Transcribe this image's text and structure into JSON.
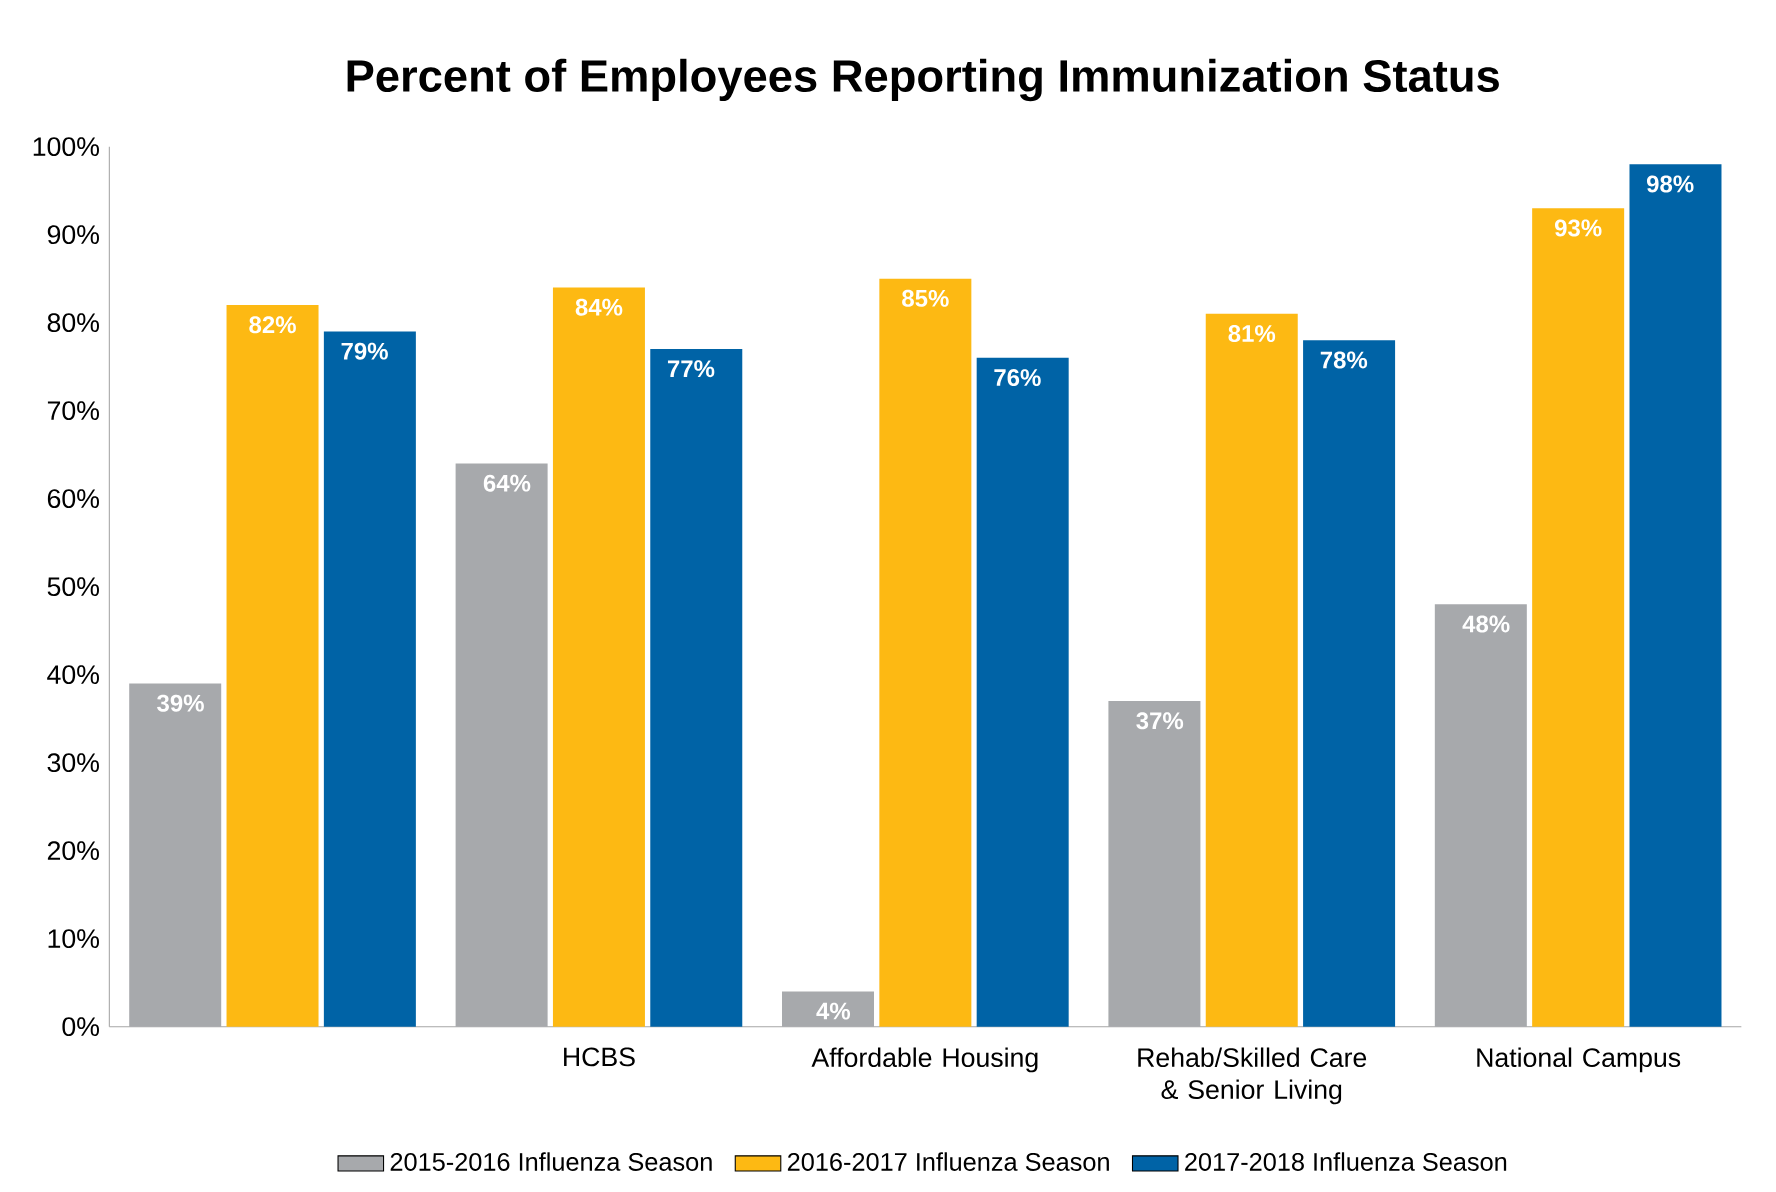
{
  "chart_data": {
    "type": "bar",
    "title": "Percent of Employees Reporting Immunization Status",
    "categories": [
      null,
      "HCBS",
      "Affordable Housing",
      "Rehab/Skilled Care & Senior Living",
      "National Campus"
    ],
    "series": [
      {
        "name": "2015-2016 Influenza Season",
        "color": "#a7a9ac",
        "values": [
          39,
          64,
          4,
          37,
          48
        ],
        "value_labels": [
          "39%",
          "64%",
          "4%",
          "37%",
          "48%"
        ]
      },
      {
        "name": "2016-2017 Influenza Season",
        "color": "#fdb913",
        "values": [
          82,
          84,
          85,
          81,
          93
        ],
        "value_labels": [
          "82%",
          "84%",
          "85%",
          "81%",
          "93%"
        ]
      },
      {
        "name": "2017-2018 Influenza Season",
        "color": "#0063a6",
        "values": [
          79,
          77,
          76,
          78,
          98
        ],
        "value_labels": [
          "79%",
          "77%",
          "76%",
          "78%",
          "98%"
        ]
      }
    ],
    "ylim": [
      0,
      100
    ],
    "yticks": [
      {
        "value": 0,
        "label": "0%"
      },
      {
        "value": 10,
        "label": "10%"
      },
      {
        "value": 20,
        "label": "20%"
      },
      {
        "value": 30,
        "label": "30%"
      },
      {
        "value": 40,
        "label": "40%"
      },
      {
        "value": 50,
        "label": "50%"
      },
      {
        "value": 60,
        "label": "60%"
      },
      {
        "value": 70,
        "label": "70%"
      },
      {
        "value": 80,
        "label": "80%"
      },
      {
        "value": 90,
        "label": "90%"
      },
      {
        "value": 100,
        "label": "100%"
      }
    ],
    "grid": false,
    "legend": "bottom"
  }
}
